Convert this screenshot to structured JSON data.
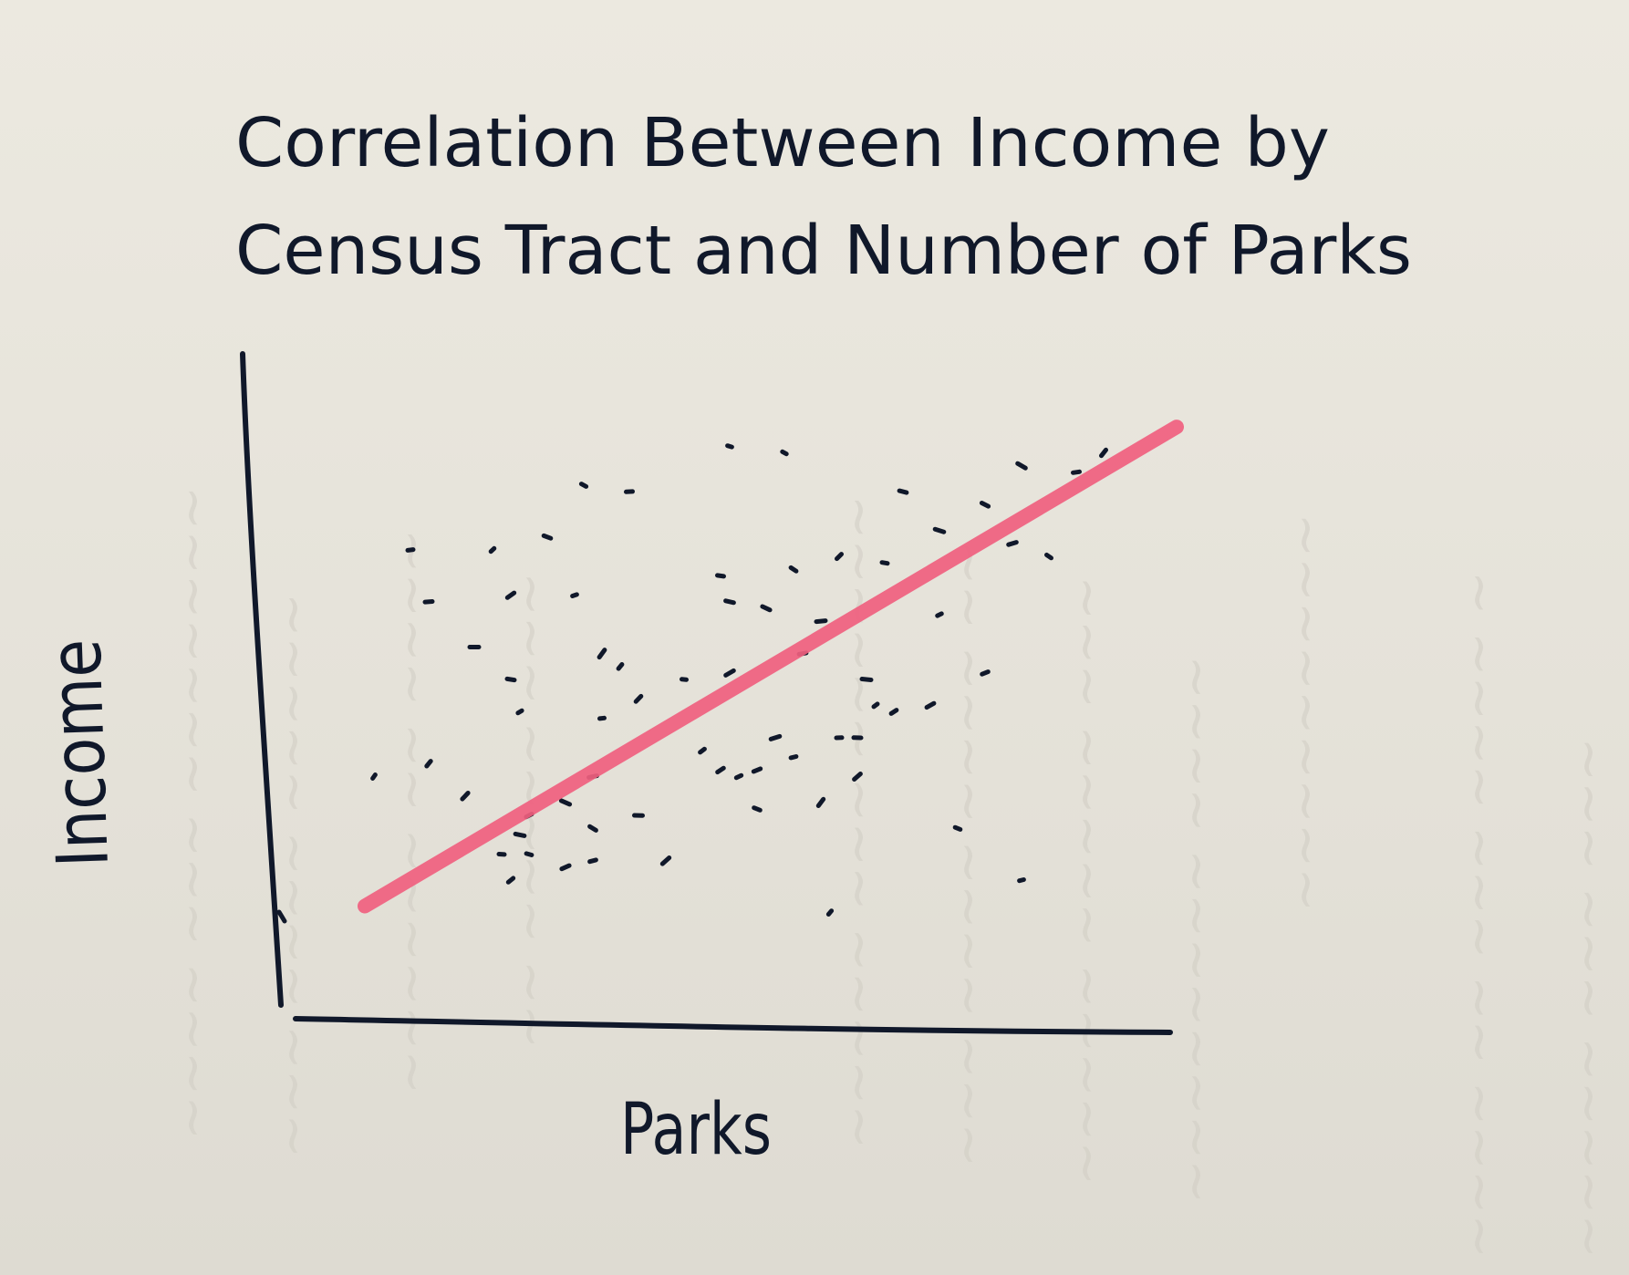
{
  "chart_data": {
    "type": "scatter",
    "title_lines": [
      "Correlation Between Income by",
      "Census Tract and Number of Parks"
    ],
    "xlabel": "Parks",
    "ylabel": "Income",
    "xlim": [
      0,
      10
    ],
    "ylim": [
      0,
      10
    ],
    "grid": false,
    "series": [
      {
        "x": [
          0.9,
          1.3,
          1.5,
          1.5,
          1.9,
          2.0,
          2.2,
          2.3,
          2.4,
          2.4,
          2.4,
          2.5,
          2.5,
          2.6,
          2.6,
          2.8,
          3.0,
          3.0,
          3.1,
          3.2,
          3.3,
          3.3,
          3.3,
          3.4,
          3.4,
          3.6,
          3.7,
          3.8,
          3.8,
          4.1,
          4.3,
          4.5,
          4.7,
          4.7,
          4.8,
          4.8,
          4.8,
          4.9,
          5.1,
          5.1,
          5.2,
          5.3,
          5.4,
          5.5,
          5.5,
          5.6,
          5.8,
          5.8,
          5.9,
          6.0,
          6.0,
          6.2,
          6.2,
          6.3,
          6.4,
          6.5,
          6.6,
          6.7,
          7.0,
          7.1,
          7.1,
          7.3,
          7.6,
          7.6,
          7.9,
          8.0,
          8.0,
          8.3,
          8.6,
          8.9
        ],
        "y": [
          3.5,
          7.0,
          3.7,
          6.2,
          3.2,
          5.5,
          7.0,
          2.3,
          1.9,
          5.0,
          6.3,
          2.6,
          4.5,
          2.3,
          2.9,
          7.2,
          2.1,
          3.1,
          6.3,
          8.0,
          2.2,
          2.7,
          3.5,
          5.4,
          4.4,
          5.2,
          7.9,
          4.7,
          2.9,
          2.2,
          5.0,
          3.9,
          6.6,
          3.6,
          6.2,
          5.1,
          8.6,
          3.5,
          3.0,
          3.6,
          6.1,
          4.1,
          8.5,
          3.8,
          6.7,
          5.4,
          3.1,
          5.9,
          1.4,
          4.1,
          6.9,
          4.1,
          3.5,
          5.0,
          4.6,
          6.8,
          4.5,
          7.9,
          4.6,
          7.3,
          6.0,
          2.7,
          5.1,
          7.7,
          7.1,
          8.3,
          1.9,
          6.9,
          8.2,
          8.5
        ]
      }
    ],
    "trendline": {
      "x": [
        0.8,
        9.7
      ],
      "y": [
        1.5,
        8.9
      ]
    }
  },
  "colors": {
    "ink": "#10182a",
    "trendline": "#f0607f",
    "paper": "#e9e6dd"
  }
}
